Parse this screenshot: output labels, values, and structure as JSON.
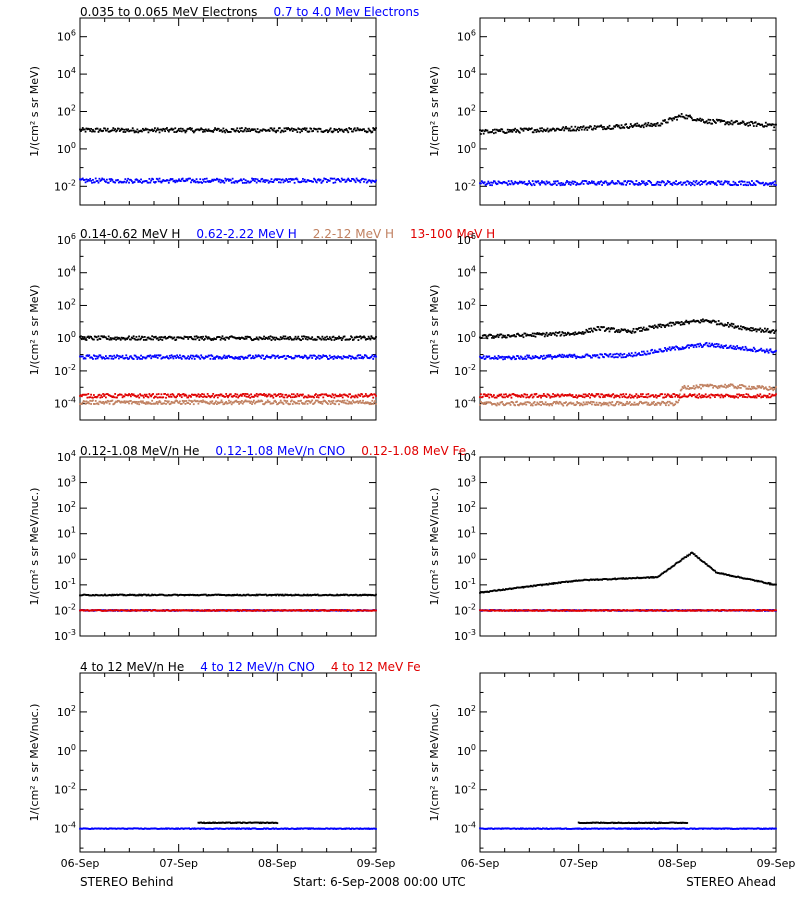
{
  "chart_data": [
    {
      "type": "scatter",
      "panel": "electrons-behind",
      "title_parts": [
        {
          "text": "0.035 to 0.065 MeV Electrons",
          "color": "#000000"
        },
        {
          "text": "0.7 to 4.0 Mev Electrons",
          "color": "#0000ff"
        }
      ],
      "ylabel": "1/(cm² s sr MeV)",
      "yscale": "log",
      "ylim_exp": [
        -3,
        7
      ],
      "yticks_exp": [
        -2,
        0,
        2,
        4,
        6
      ],
      "xlabels": [
        "06-Sep",
        "07-Sep",
        "08-Sep",
        "09-Sep"
      ],
      "series": [
        {
          "color": "#000000",
          "values": [
            {
              "x": 0,
              "y": 10
            },
            {
              "x": 1,
              "y": 10
            },
            {
              "x": 2,
              "y": 10
            },
            {
              "x": 3,
              "y": 10
            }
          ]
        },
        {
          "color": "#0000ff",
          "values": [
            {
              "x": 0,
              "y": 0.02
            },
            {
              "x": 1,
              "y": 0.02
            },
            {
              "x": 2,
              "y": 0.02
            },
            {
              "x": 3,
              "y": 0.02
            }
          ]
        }
      ]
    },
    {
      "type": "scatter",
      "panel": "electrons-ahead",
      "ylabel": "1/(cm² s sr MeV)",
      "yscale": "log",
      "ylim_exp": [
        -3,
        7
      ],
      "yticks_exp": [
        -2,
        0,
        2,
        4,
        6
      ],
      "xlabels": [
        "06-Sep",
        "07-Sep",
        "08-Sep",
        "09-Sep"
      ],
      "series": [
        {
          "color": "#000000",
          "values": [
            {
              "x": 0,
              "y": 8
            },
            {
              "x": 0.9,
              "y": 12
            },
            {
              "x": 1.8,
              "y": 20
            },
            {
              "x": 2.05,
              "y": 60
            },
            {
              "x": 2.3,
              "y": 30
            },
            {
              "x": 3,
              "y": 18
            }
          ]
        },
        {
          "color": "#0000ff",
          "values": [
            {
              "x": 0,
              "y": 0.015
            },
            {
              "x": 1,
              "y": 0.015
            },
            {
              "x": 2,
              "y": 0.015
            },
            {
              "x": 3,
              "y": 0.015
            }
          ]
        }
      ]
    },
    {
      "type": "scatter",
      "panel": "protons-behind",
      "title_parts": [
        {
          "text": "0.14-0.62 MeV H",
          "color": "#000000"
        },
        {
          "text": "0.62-2.22 MeV H",
          "color": "#0000ff"
        },
        {
          "text": "2.2-12 MeV H",
          "color": "#c08060"
        },
        {
          "text": "13-100 MeV H",
          "color": "#e00000"
        }
      ],
      "ylabel": "1/(cm² s sr MeV)",
      "yscale": "log",
      "ylim_exp": [
        -5,
        6
      ],
      "yticks_exp": [
        -4,
        -2,
        0,
        2,
        4,
        6
      ],
      "xlabels": [
        "06-Sep",
        "07-Sep",
        "08-Sep",
        "09-Sep"
      ],
      "series": [
        {
          "color": "#000000",
          "values": [
            {
              "x": 0,
              "y": 1.0
            },
            {
              "x": 3,
              "y": 1.0
            }
          ]
        },
        {
          "color": "#0000ff",
          "values": [
            {
              "x": 0,
              "y": 0.07
            },
            {
              "x": 3,
              "y": 0.07
            }
          ]
        },
        {
          "color": "#c08060",
          "values": [
            {
              "x": 0,
              "y": 0.00012
            },
            {
              "x": 3,
              "y": 0.00012
            }
          ]
        },
        {
          "color": "#e00000",
          "values": [
            {
              "x": 0,
              "y": 0.0003
            },
            {
              "x": 3,
              "y": 0.0003
            }
          ]
        }
      ]
    },
    {
      "type": "scatter",
      "panel": "protons-ahead",
      "ylabel": "1/(cm² s sr MeV)",
      "yscale": "log",
      "ylim_exp": [
        -5,
        6
      ],
      "yticks_exp": [
        -4,
        -2,
        0,
        2,
        4,
        6
      ],
      "xlabels": [
        "06-Sep",
        "07-Sep",
        "08-Sep",
        "09-Sep"
      ],
      "series": [
        {
          "color": "#000000",
          "values": [
            {
              "x": 0,
              "y": 1.2
            },
            {
              "x": 1.0,
              "y": 2.0
            },
            {
              "x": 1.2,
              "y": 4.0
            },
            {
              "x": 1.5,
              "y": 2.5
            },
            {
              "x": 2.0,
              "y": 8
            },
            {
              "x": 2.3,
              "y": 12
            },
            {
              "x": 2.7,
              "y": 4
            },
            {
              "x": 3,
              "y": 2.5
            }
          ]
        },
        {
          "color": "#0000ff",
          "values": [
            {
              "x": 0,
              "y": 0.06
            },
            {
              "x": 1.5,
              "y": 0.09
            },
            {
              "x": 2.0,
              "y": 0.25
            },
            {
              "x": 2.3,
              "y": 0.4
            },
            {
              "x": 3,
              "y": 0.15
            }
          ]
        },
        {
          "color": "#c08060",
          "values": [
            {
              "x": 0,
              "y": 0.0001
            },
            {
              "x": 2.0,
              "y": 0.0001
            },
            {
              "x": 2.05,
              "y": 0.001
            },
            {
              "x": 2.5,
              "y": 0.0012
            },
            {
              "x": 3,
              "y": 0.0008
            }
          ]
        },
        {
          "color": "#e00000",
          "values": [
            {
              "x": 0,
              "y": 0.0003
            },
            {
              "x": 3,
              "y": 0.0003
            }
          ]
        }
      ]
    },
    {
      "type": "scatter",
      "panel": "ions-low-behind",
      "title_parts": [
        {
          "text": "0.12-1.08 MeV/n He",
          "color": "#000000"
        },
        {
          "text": "0.12-1.08 MeV/n CNO",
          "color": "#0000ff"
        },
        {
          "text": "0.12-1.08 MeV Fe",
          "color": "#e00000"
        }
      ],
      "ylabel": "1/(cm² s sr MeV/nuc.)",
      "yscale": "log",
      "ylim_exp": [
        -3,
        4
      ],
      "yticks_exp": [
        -3,
        -2,
        -1,
        0,
        1,
        2,
        3,
        4
      ],
      "xlabels": [
        "06-Sep",
        "07-Sep",
        "08-Sep",
        "09-Sep"
      ],
      "series": [
        {
          "color": "#000000",
          "values": [
            {
              "x": 0,
              "y": 0.04
            },
            {
              "x": 3,
              "y": 0.04
            }
          ]
        },
        {
          "color": "#0000ff",
          "values": [
            {
              "x": 0,
              "y": 0.01
            },
            {
              "x": 3,
              "y": 0.01
            }
          ]
        },
        {
          "color": "#e00000",
          "values": [
            {
              "x": 0,
              "y": 0.01
            },
            {
              "x": 3,
              "y": 0.01
            }
          ]
        }
      ]
    },
    {
      "type": "scatter",
      "panel": "ions-low-ahead",
      "ylabel": "1/(cm² s sr MeV/nuc.)",
      "yscale": "log",
      "ylim_exp": [
        -3,
        4
      ],
      "yticks_exp": [
        -3,
        -2,
        -1,
        0,
        1,
        2,
        3,
        4
      ],
      "xlabels": [
        "06-Sep",
        "07-Sep",
        "08-Sep",
        "09-Sep"
      ],
      "series": [
        {
          "color": "#000000",
          "values": [
            {
              "x": 0,
              "y": 0.05
            },
            {
              "x": 1.0,
              "y": 0.15
            },
            {
              "x": 1.8,
              "y": 0.2
            },
            {
              "x": 2.05,
              "y": 1.0
            },
            {
              "x": 2.15,
              "y": 1.8
            },
            {
              "x": 2.4,
              "y": 0.3
            },
            {
              "x": 3,
              "y": 0.1
            }
          ]
        },
        {
          "color": "#0000ff",
          "values": [
            {
              "x": 0,
              "y": 0.01
            },
            {
              "x": 3,
              "y": 0.01
            }
          ]
        },
        {
          "color": "#e00000",
          "values": [
            {
              "x": 0,
              "y": 0.01
            },
            {
              "x": 3,
              "y": 0.01
            }
          ]
        }
      ]
    },
    {
      "type": "scatter",
      "panel": "ions-high-behind",
      "title_parts": [
        {
          "text": "4 to 12 MeV/n He",
          "color": "#000000"
        },
        {
          "text": "4 to 12 MeV/n CNO",
          "color": "#0000ff"
        },
        {
          "text": "4 to 12 MeV Fe",
          "color": "#e00000"
        }
      ],
      "ylabel": "1/(cm² s sr MeV/nuc.)",
      "yscale": "log",
      "ylim_exp": [
        -5.2,
        4
      ],
      "yticks_exp": [
        -4,
        -2,
        0,
        2
      ],
      "xlabels": [
        "06-Sep",
        "07-Sep",
        "08-Sep",
        "09-Sep"
      ],
      "series": [
        {
          "color": "#0000ff",
          "values": [
            {
              "x": 0,
              "y": 0.0001
            },
            {
              "x": 3,
              "y": 0.0001
            }
          ]
        },
        {
          "color": "#000000",
          "values": [
            {
              "x": 1.2,
              "y": 0.0002
            },
            {
              "x": 2.0,
              "y": 0.0002
            }
          ]
        }
      ]
    },
    {
      "type": "scatter",
      "panel": "ions-high-ahead",
      "ylabel": "1/(cm² s sr MeV/nuc.)",
      "yscale": "log",
      "ylim_exp": [
        -5.2,
        4
      ],
      "yticks_exp": [
        -4,
        -2,
        0,
        2
      ],
      "xlabels": [
        "06-Sep",
        "07-Sep",
        "08-Sep",
        "09-Sep"
      ],
      "series": [
        {
          "color": "#0000ff",
          "values": [
            {
              "x": 0,
              "y": 0.0001
            },
            {
              "x": 3,
              "y": 0.0001
            }
          ]
        },
        {
          "color": "#000000",
          "values": [
            {
              "x": 1.0,
              "y": 0.0002
            },
            {
              "x": 2.1,
              "y": 0.0002
            }
          ]
        }
      ]
    }
  ],
  "footer": {
    "left": "STEREO Behind",
    "center": "Start:  6-Sep-2008 00:00 UTC",
    "right": "STEREO Ahead"
  },
  "colors": {
    "black": "#000000",
    "blue": "#0000ff",
    "tan": "#c08060",
    "red": "#e00000"
  }
}
